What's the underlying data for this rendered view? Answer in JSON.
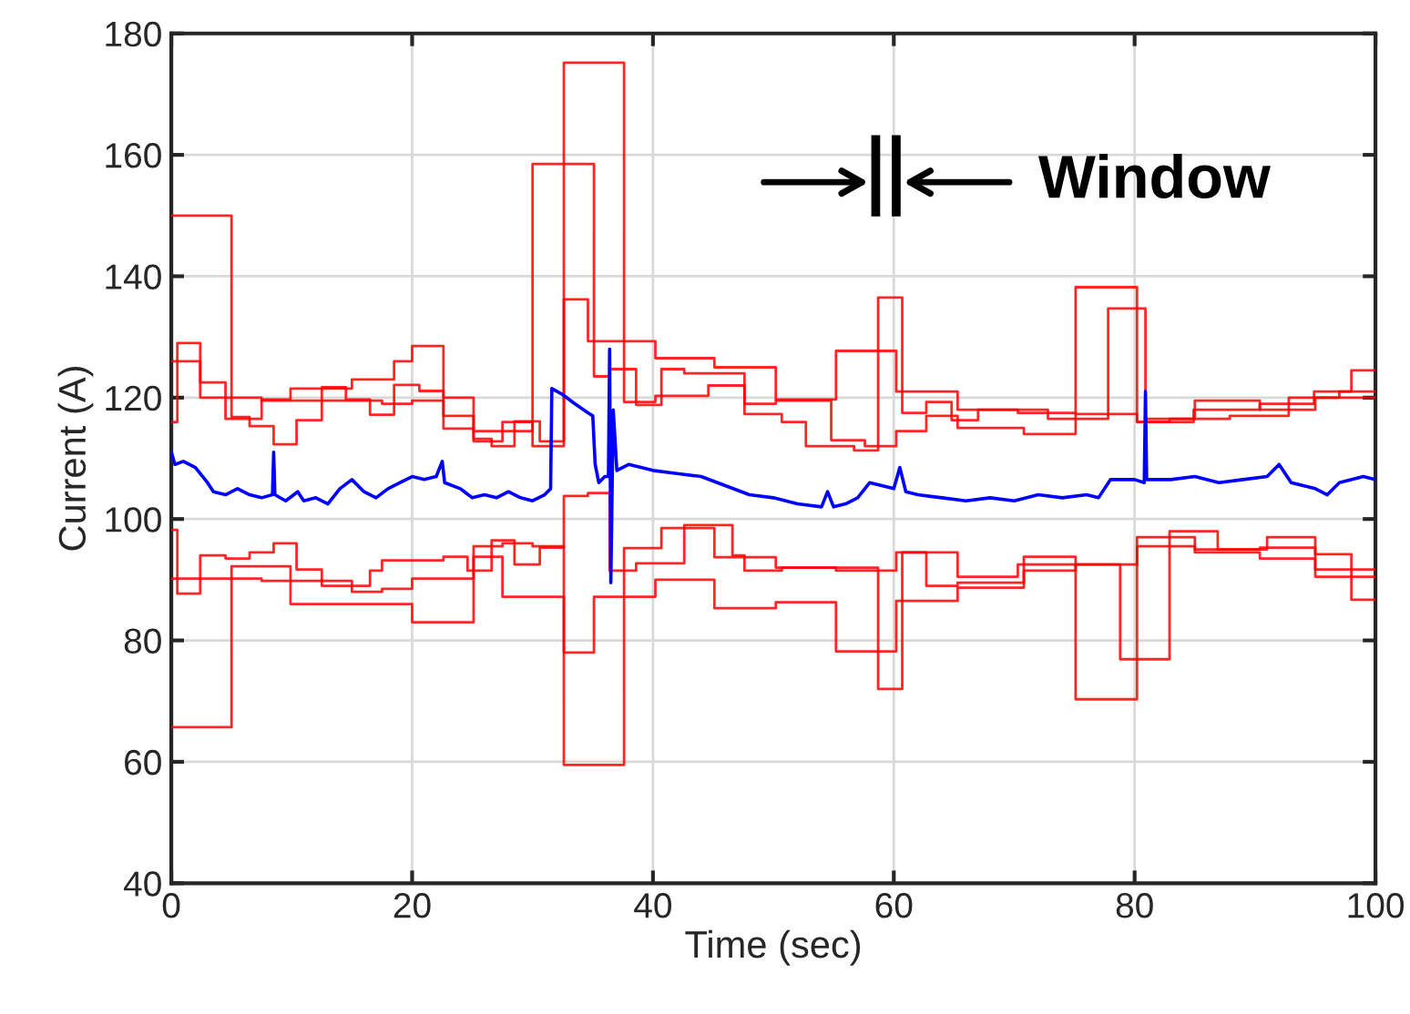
{
  "chart_data": {
    "type": "line",
    "xlabel": "Time (sec)",
    "ylabel": "Current (A)",
    "xlim": [
      0,
      100
    ],
    "ylim": [
      40,
      180
    ],
    "xticks": [
      0,
      20,
      40,
      60,
      80,
      100
    ],
    "yticks": [
      40,
      60,
      80,
      100,
      120,
      140,
      160,
      180
    ],
    "grid": true,
    "annotations": [
      "Window"
    ],
    "series": [
      {
        "type": "step",
        "color": "#ff0000",
        "x": [
          0,
          5,
          6.5,
          8.5,
          10.4,
          12.5,
          14.5,
          16.5,
          18.5,
          20.6,
          22.6,
          25.1,
          26.6,
          28.5,
          30.6,
          32.6,
          34.6,
          40.2,
          45.1,
          50.2,
          55.2,
          60.2,
          65.3,
          70.3,
          75.1,
          80.2,
          84.9,
          90.4,
          94.9,
          98,
          100
        ],
        "values": [
          150,
          116.8,
          115.3,
          112.3,
          116.3,
          121.7,
          119.7,
          117.2,
          122.1,
          121.1,
          114.9,
          113.2,
          112,
          116.1,
          112.8,
          136.2,
          129.3,
          126.5,
          125,
          119.7,
          127.7,
          121,
          118,
          117.5,
          117.3,
          116,
          118,
          119,
          121,
          124.5,
          124.5
        ]
      },
      {
        "type": "step",
        "color": "#ff0000",
        "x": [
          0,
          0.5,
          2.4,
          4.5,
          7.5,
          9.9,
          15,
          18.5,
          20,
          22.6,
          25.1,
          27.5,
          30,
          35.1,
          36.4,
          38.6,
          40.7,
          42.6,
          47.6,
          50.7,
          52.7,
          56.7,
          58.7,
          60.7,
          62.7,
          64.8,
          67,
          72.8,
          77.8,
          80.9,
          85,
          90.4,
          95,
          100
        ],
        "values": [
          116,
          129,
          122.5,
          116.5,
          119.7,
          121.5,
          123,
          126,
          128.5,
          120,
          114.5,
          114.5,
          158.5,
          123.5,
          124.7,
          118.8,
          124.7,
          124,
          117.3,
          116,
          112,
          111.3,
          136.5,
          117.5,
          119.3,
          116.3,
          118,
          116.5,
          134.7,
          116.5,
          119.5,
          118,
          120,
          120
        ]
      },
      {
        "type": "step",
        "color": "#ff0000",
        "x": [
          0,
          2.4,
          7.5,
          12.5,
          17.5,
          20,
          22.6,
          25.1,
          27.5,
          30,
          32.6,
          37.6,
          40.2,
          44.6,
          47.6,
          50.2,
          54.8,
          57.6,
          60.2,
          62.7,
          65.3,
          70.8,
          75.1,
          80.2,
          82.9,
          87.9,
          92.8,
          97,
          100
        ],
        "values": [
          126,
          120,
          119.5,
          119.5,
          119,
          119.5,
          117,
          112.8,
          116,
          112,
          175.2,
          119.3,
          120.3,
          122,
          119,
          119.5,
          113,
          112,
          114.5,
          117,
          115,
          114,
          138.2,
          116,
          116.5,
          117,
          120,
          121,
          121
        ]
      },
      {
        "type": "step",
        "color": "#ff0000",
        "x": [
          0,
          5,
          9.9,
          15,
          20,
          25.1,
          27.5,
          30,
          32.6,
          37.6,
          40.7,
          45.1,
          50.2,
          55.2,
          60.2,
          65.3,
          70.3,
          75.1,
          80.2,
          85,
          90.4,
          95,
          100
        ],
        "values": [
          65.7,
          92.2,
          86,
          86,
          83,
          95.5,
          96,
          95.5,
          59.5,
          95.2,
          98.5,
          93.7,
          92,
          91.5,
          94.5,
          90.5,
          92.5,
          70.3,
          97,
          95,
          95.3,
          91.7,
          91.7
        ]
      },
      {
        "type": "step",
        "color": "#ff0000",
        "x": [
          0,
          0.5,
          2.4,
          4.5,
          6.5,
          8.5,
          10.4,
          12.5,
          14.5,
          16.5,
          17.5,
          22.6,
          24.6,
          26.6,
          28.5,
          30.6,
          32.6,
          34.6,
          36.4,
          38.6,
          42.6,
          46.6,
          47.6,
          50.7,
          52.7,
          57.6,
          58.7,
          60.7,
          62.7,
          65.3,
          70.8,
          75.1,
          78.8,
          82.9,
          86.9,
          91,
          95,
          98,
          100
        ],
        "values": [
          98.2,
          87.7,
          94,
          93.5,
          94.5,
          96,
          91.7,
          89,
          89,
          91.5,
          93.2,
          93.8,
          91.5,
          96.5,
          92.5,
          95.3,
          103.8,
          104.3,
          91.5,
          92.7,
          99,
          94,
          91.5,
          92,
          92,
          92,
          72,
          94.5,
          89,
          89.5,
          93.8,
          92.5,
          76.9,
          98,
          95,
          97,
          94.2,
          86.7,
          86.7
        ]
      },
      {
        "type": "step",
        "color": "#ff0000",
        "x": [
          0,
          2.4,
          7.5,
          10.4,
          15,
          17.5,
          20,
          25.1,
          27.5,
          30,
          32.6,
          35.1,
          40.2,
          45.1,
          50.2,
          55.2,
          60.2,
          65.3,
          70.8,
          75.1,
          80.2,
          85,
          90.4,
          95,
          100
        ],
        "values": [
          90.2,
          90.2,
          89.8,
          89.8,
          88,
          88.5,
          90.2,
          93.8,
          87.2,
          87.2,
          78,
          87.2,
          90,
          85.3,
          86.3,
          78.2,
          86.5,
          88.7,
          91.5,
          92.5,
          95.5,
          94.5,
          93.5,
          90.5,
          90.5
        ]
      },
      {
        "color": "#0000ff",
        "x": [
          0,
          0.3,
          1,
          2,
          3,
          3.5,
          4.5,
          5.5,
          6.5,
          7.5,
          8.4,
          8.5,
          8.6,
          9.5,
          10.5,
          11,
          12,
          13,
          14,
          15,
          16,
          17,
          18,
          19,
          20,
          21,
          22,
          22.5,
          22.7,
          24,
          25,
          26,
          27,
          28,
          29,
          30,
          31,
          31.5,
          31.6,
          32.5,
          33.5,
          34.6,
          35,
          35.2,
          35.5,
          36,
          36.3,
          36.4,
          36.5,
          36.7,
          37,
          38,
          40,
          42,
          44,
          46,
          48,
          50,
          52,
          54,
          54.5,
          55,
          56,
          57,
          58,
          60,
          60.5,
          61,
          62,
          64,
          66,
          68,
          70,
          72,
          74,
          76,
          77,
          78,
          80,
          80.8,
          80.9,
          81,
          83,
          85,
          87,
          89,
          91,
          92,
          93,
          95,
          96,
          97,
          99,
          100
        ],
        "values": [
          111,
          109,
          109.5,
          108.5,
          106,
          104.5,
          104,
          105,
          104,
          103.5,
          104,
          111,
          104,
          103,
          104.5,
          103,
          103.5,
          102.5,
          105,
          106.5,
          104.5,
          103.5,
          105,
          106,
          107,
          106.5,
          107,
          109.5,
          106,
          105,
          103.5,
          104,
          103.5,
          104.5,
          103.5,
          103,
          104,
          105,
          121.5,
          120.5,
          119,
          117.5,
          117,
          109,
          106,
          107,
          107,
          128,
          89.5,
          118,
          108,
          109,
          108,
          107.5,
          107,
          105.5,
          104,
          103.5,
          102.5,
          102,
          104.5,
          102,
          102.5,
          103.5,
          106,
          105,
          108.5,
          104.5,
          104,
          103.5,
          103,
          103.5,
          103,
          104,
          103.5,
          104,
          103.5,
          106.5,
          106.5,
          106,
          121,
          106.5,
          106.5,
          107,
          106,
          106.5,
          107,
          109,
          106,
          105,
          104,
          106,
          107,
          106.5
        ]
      }
    ]
  }
}
